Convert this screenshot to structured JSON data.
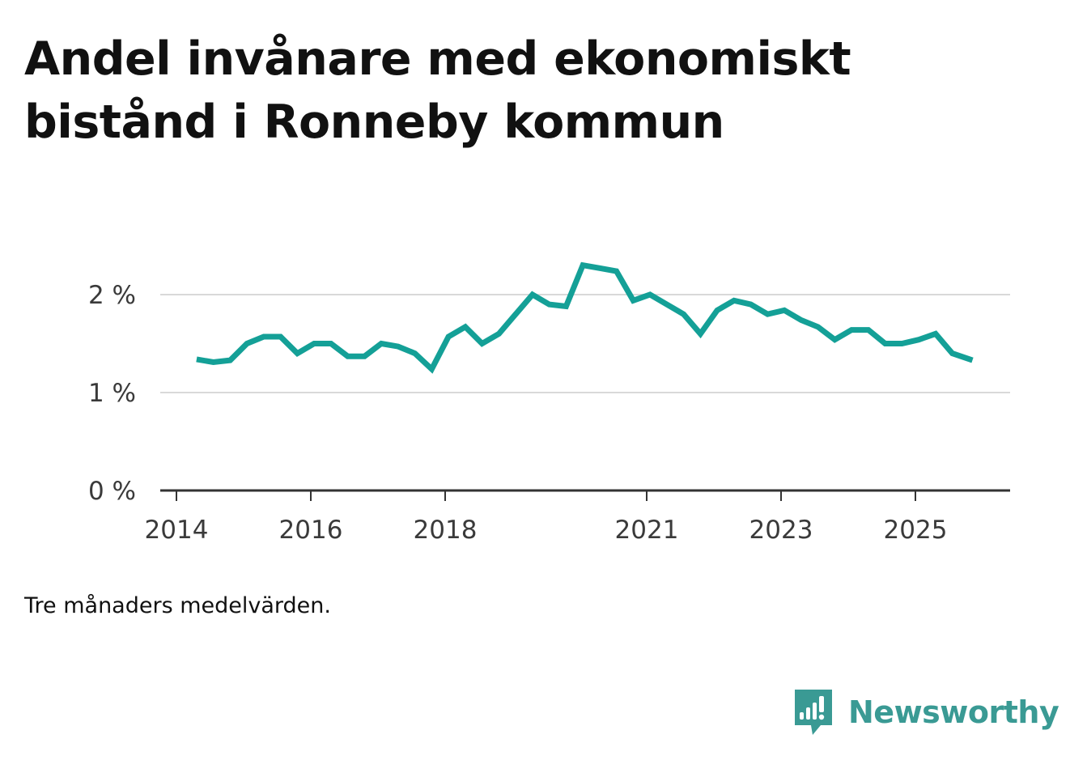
{
  "title": "Andel invånare med ekonomiskt bistånd i Ronneby kommun",
  "note": "Tre månaders medelvärden.",
  "brand": {
    "name": "Newsworthy",
    "icon": "newsworthy-logo-icon",
    "color": "#3a9a94"
  },
  "colors": {
    "line": "#14a097",
    "grid": "#d9d9d9",
    "axis": "#333333",
    "text": "#3a3a3a"
  },
  "chart_data": {
    "type": "line",
    "title": "Andel invånare med ekonomiskt bistånd i Ronneby kommun",
    "xlabel": "",
    "ylabel": "",
    "ylim": [
      0,
      2.5
    ],
    "xlim": [
      2014,
      2026.4
    ],
    "grid": true,
    "yticks": [
      {
        "value": 0,
        "label": "0 %"
      },
      {
        "value": 1,
        "label": "1 %"
      },
      {
        "value": 2,
        "label": "2 %"
      }
    ],
    "xticks": [
      {
        "value": 2014,
        "label": "2014"
      },
      {
        "value": 2016,
        "label": "2016"
      },
      {
        "value": 2018,
        "label": "2018"
      },
      {
        "value": 2021,
        "label": "2021"
      },
      {
        "value": 2023,
        "label": "2023"
      },
      {
        "value": 2025,
        "label": "2025"
      }
    ],
    "series": [
      {
        "name": "Andel invånare med ekonomiskt bistånd",
        "x": [
          2014.3,
          2014.55,
          2014.8,
          2015.05,
          2015.3,
          2015.55,
          2015.8,
          2016.05,
          2016.3,
          2016.55,
          2016.8,
          2017.05,
          2017.3,
          2017.55,
          2017.8,
          2018.05,
          2018.3,
          2018.55,
          2018.8,
          2019.05,
          2019.3,
          2019.55,
          2019.8,
          2020.05,
          2020.3,
          2020.55,
          2020.8,
          2021.05,
          2021.3,
          2021.55,
          2021.8,
          2022.05,
          2022.3,
          2022.55,
          2022.8,
          2023.05,
          2023.3,
          2023.55,
          2023.8,
          2024.05,
          2024.3,
          2024.55,
          2024.8,
          2025.05,
          2025.3,
          2025.55,
          2025.85
        ],
        "values": [
          1.34,
          1.31,
          1.33,
          1.5,
          1.57,
          1.57,
          1.4,
          1.5,
          1.5,
          1.37,
          1.37,
          1.5,
          1.47,
          1.4,
          1.24,
          1.57,
          1.67,
          1.5,
          1.6,
          1.8,
          2.0,
          1.9,
          1.88,
          2.3,
          2.27,
          2.24,
          1.94,
          2.0,
          1.9,
          1.8,
          1.6,
          1.84,
          1.94,
          1.9,
          1.8,
          1.84,
          1.74,
          1.67,
          1.54,
          1.64,
          1.64,
          1.5,
          1.5,
          1.54,
          1.6,
          1.4,
          1.33
        ]
      }
    ]
  }
}
